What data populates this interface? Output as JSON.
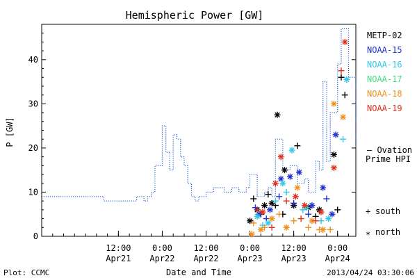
{
  "chart_data": {
    "type": "scatter",
    "title": "Hemispheric Power [GW]",
    "xlabel": "Date and Time",
    "ylabel": "P [GW]",
    "xlim": [
      "2013-04-20T15:00",
      "2013-04-24T05:00"
    ],
    "ylim": [
      0,
      48
    ],
    "y_ticks": [
      0,
      10,
      20,
      30,
      40
    ],
    "x_ticks": [
      {
        "t": "2013-04-21T12:00",
        "time": "12:00",
        "day": "Apr21"
      },
      {
        "t": "2013-04-22T00:00",
        "time": "0:00",
        "day": "Apr22"
      },
      {
        "t": "2013-04-22T12:00",
        "time": "12:00",
        "day": "Apr22"
      },
      {
        "t": "2013-04-23T00:00",
        "time": "0:00",
        "day": "Apr23"
      },
      {
        "t": "2013-04-23T12:00",
        "time": "12:00",
        "day": "Apr23"
      },
      {
        "t": "2013-04-24T00:00",
        "time": "0:00",
        "day": "Apr24"
      }
    ],
    "grid": false,
    "legend_position": "right",
    "footer": {
      "left": "Plot: CCMC",
      "right": "2013/04/24 03:30:06"
    },
    "ovation": {
      "label_line1": "— Ovation",
      "label_line2": "Prime HPI",
      "color": "#1f5fd0",
      "style": "dotted-step",
      "x": [
        "2013-04-20T15:00",
        "2013-04-21T04:00",
        "2013-04-21T08:00",
        "2013-04-21T11:00",
        "2013-04-21T14:00",
        "2013-04-21T17:00",
        "2013-04-21T19:00",
        "2013-04-21T20:00",
        "2013-04-21T21:00",
        "2013-04-21T22:00",
        "2013-04-22T00:00",
        "2013-04-22T01:00",
        "2013-04-22T02:00",
        "2013-04-22T03:00",
        "2013-04-22T04:00",
        "2013-04-22T05:00",
        "2013-04-22T06:00",
        "2013-04-22T07:00",
        "2013-04-22T08:00",
        "2013-04-22T09:00",
        "2013-04-22T10:00",
        "2013-04-22T12:00",
        "2013-04-22T14:00",
        "2013-04-22T16:00",
        "2013-04-22T17:00",
        "2013-04-22T19:00",
        "2013-04-22T21:00",
        "2013-04-22T23:00",
        "2013-04-23T00:00",
        "2013-04-23T02:00",
        "2013-04-23T04:00",
        "2013-04-23T05:00",
        "2013-04-23T06:00",
        "2013-04-23T07:00",
        "2013-04-23T09:00",
        "2013-04-23T11:00",
        "2013-04-23T13:00",
        "2013-04-23T15:00",
        "2013-04-23T16:00",
        "2013-04-23T17:00",
        "2013-04-23T18:00",
        "2013-04-23T19:00",
        "2013-04-23T20:00",
        "2013-04-23T21:00",
        "2013-04-23T22:00",
        "2013-04-24T00:00",
        "2013-04-24T01:00",
        "2013-04-24T02:00",
        "2013-04-24T03:00",
        "2013-04-24T05:00"
      ],
      "y": [
        9,
        9,
        8,
        8,
        8,
        9,
        8,
        9,
        10,
        16,
        25,
        19,
        15,
        23,
        22,
        18,
        16,
        12,
        9,
        8,
        9,
        10,
        11,
        11,
        10,
        11,
        10,
        11,
        14,
        9,
        10,
        11,
        9,
        22,
        15,
        16,
        12,
        13,
        10,
        10,
        17,
        15,
        35,
        17,
        28,
        39,
        47,
        47,
        36,
        20
      ]
    },
    "series": [
      {
        "name": "METP-02",
        "color": "#000000",
        "points_south": [
          [
            "2013-04-23T01:00",
            8.5
          ],
          [
            "2013-04-23T03:00",
            5
          ],
          [
            "2013-04-23T05:00",
            9.5
          ],
          [
            "2013-04-23T07:00",
            7
          ],
          [
            "2013-04-23T09:00",
            5
          ],
          [
            "2013-04-23T13:00",
            20.5
          ],
          [
            "2013-04-23T18:00",
            4.5
          ],
          [
            "2013-04-24T00:00",
            6
          ],
          [
            "2013-04-24T01:00",
            36
          ],
          [
            "2013-04-24T02:00",
            32
          ]
        ],
        "points_north": [
          [
            "2013-04-23T00:00",
            3.5
          ],
          [
            "2013-04-23T02:00",
            6
          ],
          [
            "2013-04-23T04:00",
            7
          ],
          [
            "2013-04-23T06:00",
            7.5
          ],
          [
            "2013-04-23T07:30",
            27.5
          ],
          [
            "2013-04-23T09:30",
            15
          ],
          [
            "2013-04-23T12:00",
            7
          ],
          [
            "2013-04-23T16:00",
            6.5
          ],
          [
            "2013-04-23T19:00",
            6
          ],
          [
            "2013-04-23T23:00",
            18.5
          ]
        ]
      },
      {
        "name": "NOAA-15",
        "color": "#1f2fd0",
        "points_south": [
          [
            "2013-04-23T01:30",
            6.5
          ],
          [
            "2013-04-23T04:30",
            4
          ],
          [
            "2013-04-23T08:00",
            9
          ],
          [
            "2013-04-23T12:00",
            7.5
          ],
          [
            "2013-04-23T16:00",
            5
          ],
          [
            "2013-04-23T21:00",
            8.5
          ]
        ],
        "points_north": [
          [
            "2013-04-23T02:30",
            5
          ],
          [
            "2013-04-23T05:30",
            6
          ],
          [
            "2013-04-23T08:30",
            13
          ],
          [
            "2013-04-23T11:00",
            13.5
          ],
          [
            "2013-04-23T13:30",
            14.5
          ],
          [
            "2013-04-23T17:00",
            7
          ],
          [
            "2013-04-23T20:00",
            11
          ],
          [
            "2013-04-23T22:30",
            5
          ],
          [
            "2013-04-23T23:30",
            23
          ]
        ]
      },
      {
        "name": "NOAA-16",
        "color": "#30c8e8",
        "points_south": [
          [
            "2013-04-23T03:30",
            2.5
          ],
          [
            "2013-04-23T07:00",
            8
          ],
          [
            "2013-04-23T10:00",
            10
          ],
          [
            "2013-04-23T14:30",
            6
          ],
          [
            "2013-04-23T19:30",
            3.5
          ],
          [
            "2013-04-24T01:30",
            22
          ]
        ],
        "points_north": [
          [
            "2013-04-23T02:00",
            4.5
          ],
          [
            "2013-04-23T05:00",
            3
          ],
          [
            "2013-04-23T09:00",
            12
          ],
          [
            "2013-04-23T11:30",
            19.5
          ],
          [
            "2013-04-23T15:30",
            6.5
          ],
          [
            "2013-04-23T21:30",
            4
          ],
          [
            "2013-04-24T02:30",
            35.5
          ]
        ]
      },
      {
        "name": "NOAA-17",
        "color": "#40e080",
        "points_south": [],
        "points_north": []
      },
      {
        "name": "NOAA-18",
        "color": "#f09020",
        "points_south": [
          [
            "2013-04-23T01:00",
            3
          ],
          [
            "2013-04-23T04:00",
            2
          ],
          [
            "2013-04-23T08:00",
            5
          ],
          [
            "2013-04-23T12:00",
            3.5
          ],
          [
            "2013-04-23T16:00",
            2
          ],
          [
            "2013-04-23T19:00",
            1.5
          ],
          [
            "2013-04-23T22:00",
            1.5
          ]
        ],
        "points_north": [
          [
            "2013-04-23T00:30",
            0.5
          ],
          [
            "2013-04-23T03:00",
            1.5
          ],
          [
            "2013-04-23T06:00",
            4
          ],
          [
            "2013-04-23T10:00",
            2
          ],
          [
            "2013-04-23T13:00",
            11
          ],
          [
            "2013-04-23T17:00",
            3.5
          ],
          [
            "2013-04-23T20:00",
            1.5
          ],
          [
            "2013-04-23T23:00",
            30
          ],
          [
            "2013-04-24T01:30",
            27
          ]
        ]
      },
      {
        "name": "NOAA-19",
        "color": "#e03020",
        "points_south": [
          [
            "2013-04-23T02:00",
            6
          ],
          [
            "2013-04-23T06:00",
            2
          ],
          [
            "2013-04-23T10:00",
            8
          ],
          [
            "2013-04-23T14:00",
            4
          ],
          [
            "2013-04-23T18:00",
            3.5
          ],
          [
            "2013-04-24T01:00",
            37.5
          ]
        ],
        "points_north": [
          [
            "2013-04-23T03:30",
            5.5
          ],
          [
            "2013-04-23T07:00",
            12
          ],
          [
            "2013-04-23T08:30",
            18
          ],
          [
            "2013-04-23T12:30",
            9
          ],
          [
            "2013-04-23T15:00",
            7
          ],
          [
            "2013-04-23T19:30",
            5.5
          ],
          [
            "2013-04-23T23:00",
            15.5
          ],
          [
            "2013-04-24T02:00",
            44
          ]
        ]
      }
    ],
    "symbol_key": [
      {
        "symbol": "+",
        "label": "south"
      },
      {
        "symbol": "*",
        "label": "north"
      }
    ]
  }
}
